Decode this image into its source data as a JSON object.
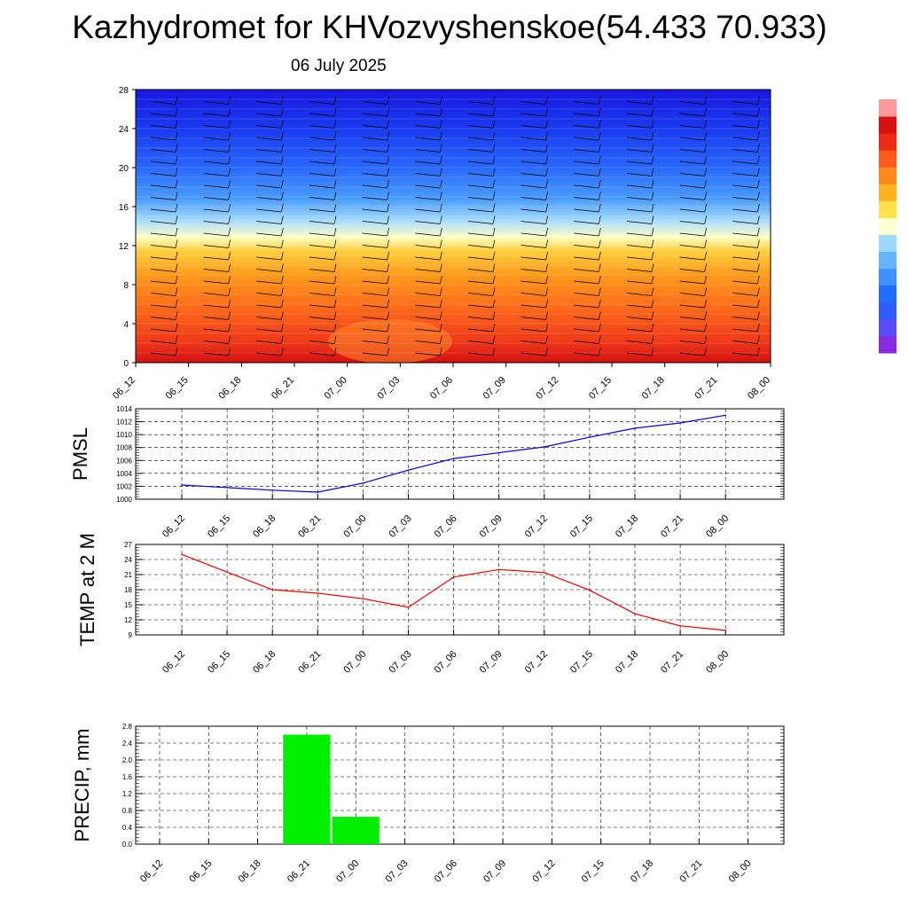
{
  "header": {
    "title": "Kazhydromet for KHVozvyshenskoe(54.433 70.933)",
    "date": "06 July 2025"
  },
  "time_labels": [
    "06_12",
    "06_15",
    "06_18",
    "06_21",
    "07_00",
    "07_03",
    "07_06",
    "07_09",
    "07_12",
    "07_15",
    "07_18",
    "07_21",
    "08_00"
  ],
  "chart_data": [
    {
      "type": "heatmap",
      "name": "vertical-section",
      "x": [
        "06_12",
        "06_15",
        "06_18",
        "06_21",
        "07_00",
        "07_03",
        "07_06",
        "07_09",
        "07_12",
        "07_15",
        "07_18",
        "07_21",
        "08_00"
      ],
      "yticks": [
        "0",
        "4",
        "8",
        "12",
        "16",
        "20",
        "24",
        "28"
      ],
      "ylim": [
        0,
        28
      ],
      "colorbar": [
        "#8a2be2",
        "#5a4bff",
        "#2f5bff",
        "#1f6dff",
        "#3f8fff",
        "#64b4ff",
        "#9fd8ff",
        "#ffffd0",
        "#ffe24a",
        "#ffb21c",
        "#ff8a1c",
        "#ff5a1a",
        "#ef2a14",
        "#d81010",
        "#ff9a9a"
      ]
    },
    {
      "type": "line",
      "ylabel": "PMSL",
      "x": [
        "06_12",
        "06_15",
        "06_18",
        "06_21",
        "07_00",
        "07_03",
        "07_06",
        "07_09",
        "07_12",
        "07_15",
        "07_18",
        "07_21",
        "08_00"
      ],
      "values": [
        1002.2,
        1001.8,
        1001.4,
        1001.1,
        1002.5,
        1004.5,
        1006.3,
        1007.2,
        1008.1,
        1009.6,
        1011.0,
        1011.8,
        1013.0
      ],
      "ylim": [
        1000,
        1014
      ],
      "yticks": [
        "1000",
        "1002",
        "1004",
        "1006",
        "1008",
        "1010",
        "1012",
        "1014"
      ],
      "color": "#0000dd",
      "grid": true
    },
    {
      "type": "line",
      "ylabel": "TEMP at 2 M",
      "x": [
        "06_12",
        "06_15",
        "06_18",
        "06_21",
        "07_00",
        "07_03",
        "07_06",
        "07_09",
        "07_12",
        "07_15",
        "07_18",
        "07_21",
        "08_00"
      ],
      "values": [
        25.0,
        21.5,
        18.0,
        17.3,
        16.2,
        14.5,
        20.5,
        22.0,
        21.4,
        17.9,
        13.2,
        10.8,
        9.9
      ],
      "ylim": [
        9,
        27
      ],
      "yticks": [
        "9",
        "12",
        "15",
        "18",
        "21",
        "24",
        "27"
      ],
      "color": "#ee0000",
      "grid": true
    },
    {
      "type": "bar",
      "ylabel": "PRECIP, mm",
      "x": [
        "06_12",
        "06_15",
        "06_18",
        "06_21",
        "07_00",
        "07_03",
        "07_06",
        "07_09",
        "07_12",
        "07_15",
        "07_18",
        "07_21",
        "08_00"
      ],
      "values": [
        0,
        0,
        0,
        2.6,
        0.65,
        0,
        0,
        0,
        0,
        0,
        0,
        0,
        0
      ],
      "ylim": [
        0,
        2.8
      ],
      "yticks": [
        "0.0",
        "0.4",
        "0.8",
        "1.2",
        "1.6",
        "2.0",
        "2.4",
        "2.8"
      ],
      "color": "#00ee00",
      "grid": true
    }
  ]
}
